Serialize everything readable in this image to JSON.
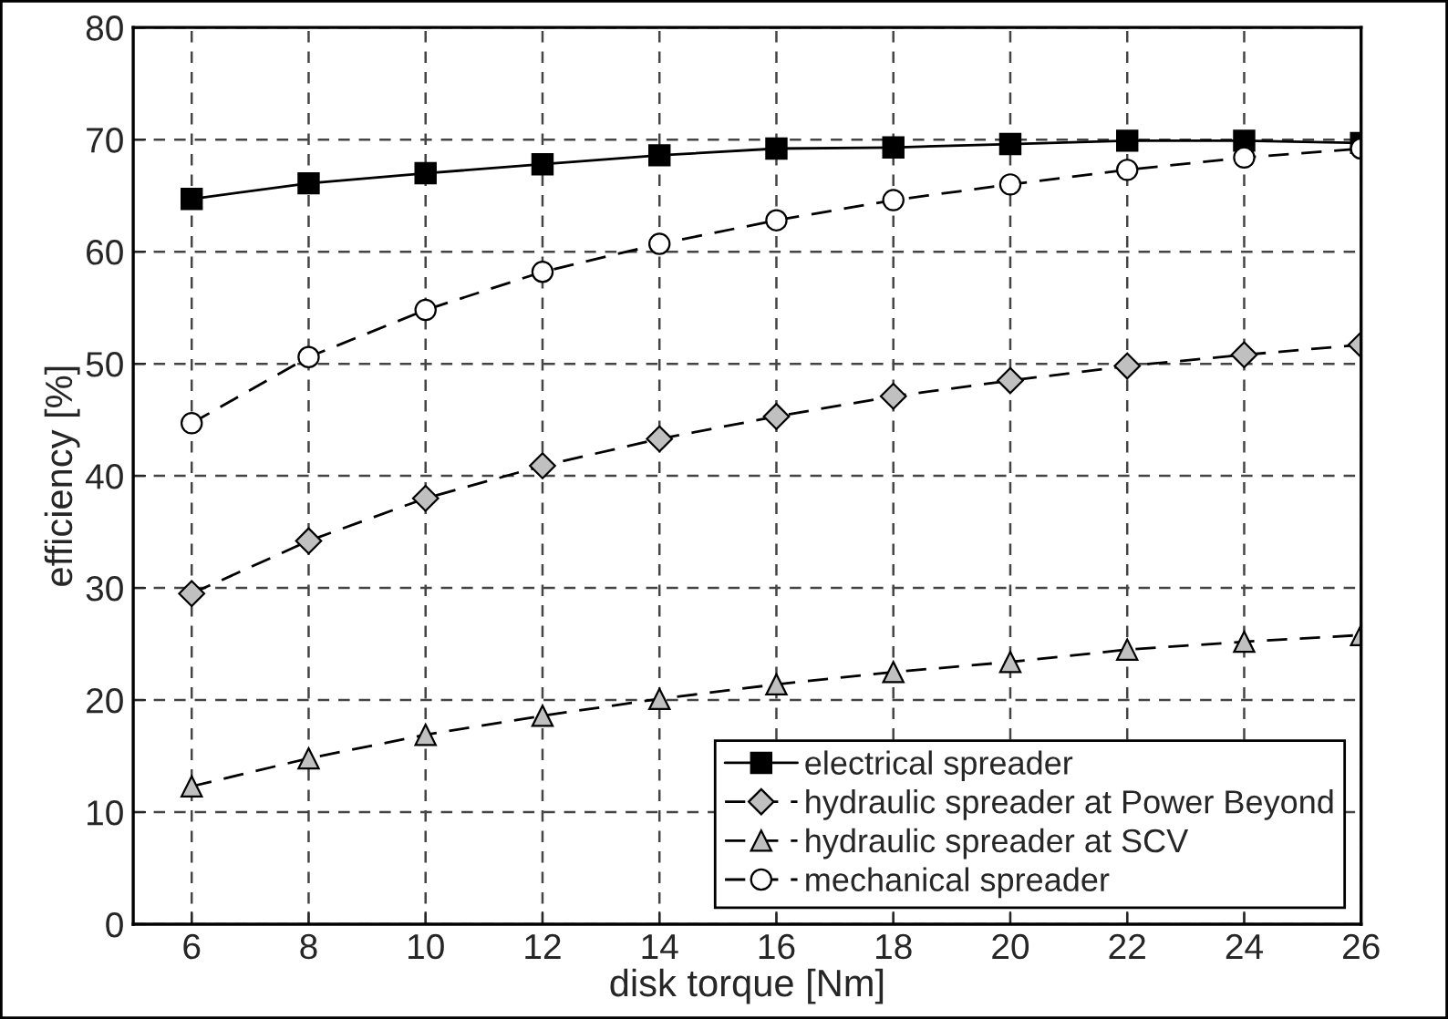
{
  "chart_data": {
    "type": "line",
    "xlabel": "disk torque [Nm]",
    "ylabel": "efficiency [%]",
    "x": [
      6,
      8,
      10,
      12,
      14,
      16,
      18,
      20,
      22,
      24,
      26
    ],
    "series": [
      {
        "name": "electrical spreader",
        "color": "#000000",
        "marker": "square",
        "line_style": "solid",
        "values": [
          64.7,
          66.1,
          67.0,
          67.8,
          68.6,
          69.2,
          69.3,
          69.6,
          69.9,
          69.9,
          69.7
        ]
      },
      {
        "name": "hydraulic spreader at Power Beyond",
        "color": "#c0c0c0",
        "marker": "diamond",
        "line_style": "dashed",
        "values": [
          29.5,
          34.2,
          38.0,
          40.9,
          43.3,
          45.3,
          47.1,
          48.5,
          49.8,
          50.8,
          51.7
        ]
      },
      {
        "name": "hydraulic spreader at SCV",
        "color": "#c0c0c0",
        "marker": "triangle",
        "line_style": "dashed",
        "values": [
          12.3,
          14.8,
          16.9,
          18.6,
          20.1,
          21.4,
          22.5,
          23.4,
          24.5,
          25.2,
          25.8
        ]
      },
      {
        "name": "mechanical spreader",
        "color": "#ffffff",
        "marker": "circle",
        "line_style": "dashed",
        "values": [
          44.7,
          50.6,
          54.8,
          58.2,
          60.7,
          62.8,
          64.6,
          66.0,
          67.3,
          68.4,
          69.2
        ]
      }
    ],
    "xlim": [
      5,
      26
    ],
    "xticks": [
      6,
      8,
      10,
      12,
      14,
      16,
      18,
      20,
      22,
      24,
      26
    ],
    "ylim": [
      0,
      80
    ],
    "yticks": [
      0,
      10,
      20,
      30,
      40,
      50,
      60,
      70,
      80
    ],
    "grid": true,
    "legend": "bottom right"
  }
}
